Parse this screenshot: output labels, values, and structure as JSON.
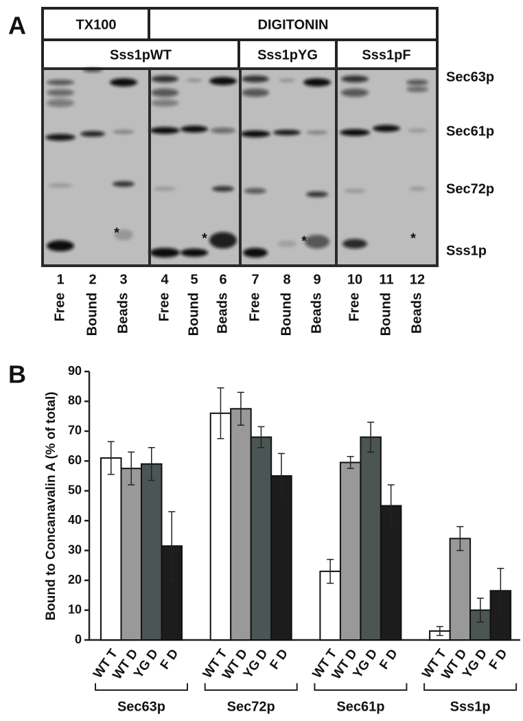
{
  "panel_labels": [
    "A",
    "B"
  ],
  "blot": {
    "headers": [
      "TX100",
      "DIGITONIN"
    ],
    "subheaders": [
      "Sss1pWT",
      "Sss1pYG",
      "Sss1pF"
    ],
    "proteins": [
      "Sec63p",
      "Sec61p",
      "Sec72p",
      "Sss1p"
    ],
    "lane_numbers": [
      1,
      2,
      3,
      4,
      5,
      6,
      7,
      8,
      9,
      10,
      11,
      12
    ],
    "lane_labels": [
      "Free",
      "Bound",
      "Beads",
      "Free",
      "Bound",
      "Beads",
      "Free",
      "Bound",
      "Beads",
      "Free",
      "Bound",
      "Beads"
    ],
    "asterisks": [
      "*",
      "*",
      "*",
      "*"
    ]
  },
  "chart_data": {
    "type": "bar",
    "y_label": "Bound to Concanavalin A (% of total)",
    "categories": [
      "Sec63p",
      "Sec72p",
      "Sec61p",
      "Sss1p"
    ],
    "series": [
      {
        "name": "WT T",
        "color": "#ffffff",
        "values": [
          61,
          76,
          23,
          3
        ],
        "errors": [
          5.5,
          8.5,
          4,
          1.5
        ]
      },
      {
        "name": "WT D",
        "color": "#999999",
        "values": [
          57.5,
          77.5,
          59.5,
          34
        ],
        "errors": [
          5.5,
          5.5,
          2,
          4
        ]
      },
      {
        "name": "YG D",
        "color": "#4b5553",
        "values": [
          59,
          68,
          68,
          10
        ],
        "errors": [
          5.5,
          3.5,
          5,
          4
        ]
      },
      {
        "name": "F D",
        "color": "#1c1c1c",
        "values": [
          31.5,
          55,
          45,
          16.5
        ],
        "errors": [
          11.5,
          7.5,
          7,
          7.5
        ]
      }
    ],
    "ylim": [
      0,
      90
    ],
    "yticks": [
      0,
      10,
      20,
      30,
      40,
      50,
      60,
      70,
      80,
      90
    ]
  }
}
